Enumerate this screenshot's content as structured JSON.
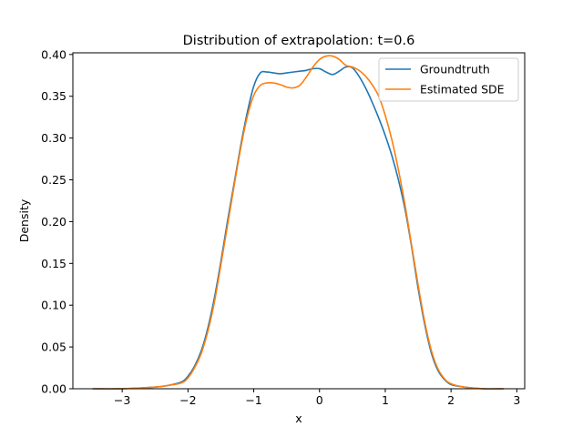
{
  "chart_data": {
    "type": "line",
    "title": "Distribution of extrapolation: t=0.6",
    "xlabel": "x",
    "ylabel": "Density",
    "xlim": [
      -3.75,
      3.12
    ],
    "ylim": [
      0.0,
      0.402
    ],
    "xticks": [
      -3,
      -2,
      -1,
      0,
      1,
      2,
      3
    ],
    "xtick_labels": [
      "−3",
      "−2",
      "−1",
      "0",
      "1",
      "2",
      "3"
    ],
    "yticks": [
      0.0,
      0.05,
      0.1,
      0.15,
      0.2,
      0.25,
      0.3,
      0.35,
      0.4
    ],
    "ytick_labels": [
      "0.00",
      "0.05",
      "0.10",
      "0.15",
      "0.20",
      "0.25",
      "0.30",
      "0.35",
      "0.40"
    ],
    "grid": false,
    "legend_position": "top-right",
    "series": [
      {
        "name": "Groundtruth",
        "color": "#1f77b4",
        "x": [
          -3.45,
          -3.0,
          -2.5,
          -2.3,
          -2.1,
          -2.0,
          -1.9,
          -1.8,
          -1.7,
          -1.6,
          -1.5,
          -1.4,
          -1.3,
          -1.2,
          -1.1,
          -1.0,
          -0.9,
          -0.8,
          -0.7,
          -0.6,
          -0.5,
          -0.4,
          -0.3,
          -0.2,
          -0.1,
          0.0,
          0.1,
          0.2,
          0.3,
          0.4,
          0.5,
          0.6,
          0.7,
          0.8,
          0.9,
          1.0,
          1.1,
          1.2,
          1.3,
          1.4,
          1.5,
          1.6,
          1.7,
          1.8,
          1.9,
          2.0,
          2.2,
          2.5,
          2.8
        ],
        "y": [
          0.0,
          0.0,
          0.002,
          0.004,
          0.008,
          0.015,
          0.027,
          0.045,
          0.072,
          0.108,
          0.152,
          0.2,
          0.245,
          0.29,
          0.33,
          0.362,
          0.378,
          0.379,
          0.378,
          0.377,
          0.378,
          0.379,
          0.38,
          0.381,
          0.383,
          0.383,
          0.379,
          0.376,
          0.38,
          0.385,
          0.384,
          0.374,
          0.36,
          0.343,
          0.324,
          0.303,
          0.279,
          0.25,
          0.215,
          0.17,
          0.12,
          0.077,
          0.043,
          0.022,
          0.011,
          0.005,
          0.002,
          0.0,
          0.0
        ]
      },
      {
        "name": "Estimated SDE",
        "color": "#ff7f0e",
        "x": [
          -3.45,
          -3.0,
          -2.5,
          -2.3,
          -2.1,
          -2.0,
          -1.9,
          -1.8,
          -1.7,
          -1.6,
          -1.5,
          -1.4,
          -1.3,
          -1.2,
          -1.1,
          -1.0,
          -0.9,
          -0.8,
          -0.7,
          -0.6,
          -0.5,
          -0.4,
          -0.3,
          -0.2,
          -0.1,
          0.0,
          0.1,
          0.2,
          0.3,
          0.4,
          0.5,
          0.6,
          0.7,
          0.8,
          0.9,
          1.0,
          1.1,
          1.2,
          1.3,
          1.4,
          1.5,
          1.6,
          1.7,
          1.8,
          1.9,
          2.0,
          2.2,
          2.5,
          2.8
        ],
        "y": [
          0.0,
          0.0,
          0.002,
          0.004,
          0.007,
          0.013,
          0.025,
          0.042,
          0.068,
          0.103,
          0.148,
          0.195,
          0.242,
          0.287,
          0.325,
          0.351,
          0.363,
          0.366,
          0.366,
          0.364,
          0.361,
          0.36,
          0.363,
          0.373,
          0.385,
          0.394,
          0.398,
          0.398,
          0.394,
          0.387,
          0.385,
          0.381,
          0.374,
          0.364,
          0.35,
          0.327,
          0.298,
          0.262,
          0.22,
          0.172,
          0.124,
          0.08,
          0.046,
          0.024,
          0.012,
          0.006,
          0.002,
          0.0,
          0.0
        ]
      }
    ]
  }
}
